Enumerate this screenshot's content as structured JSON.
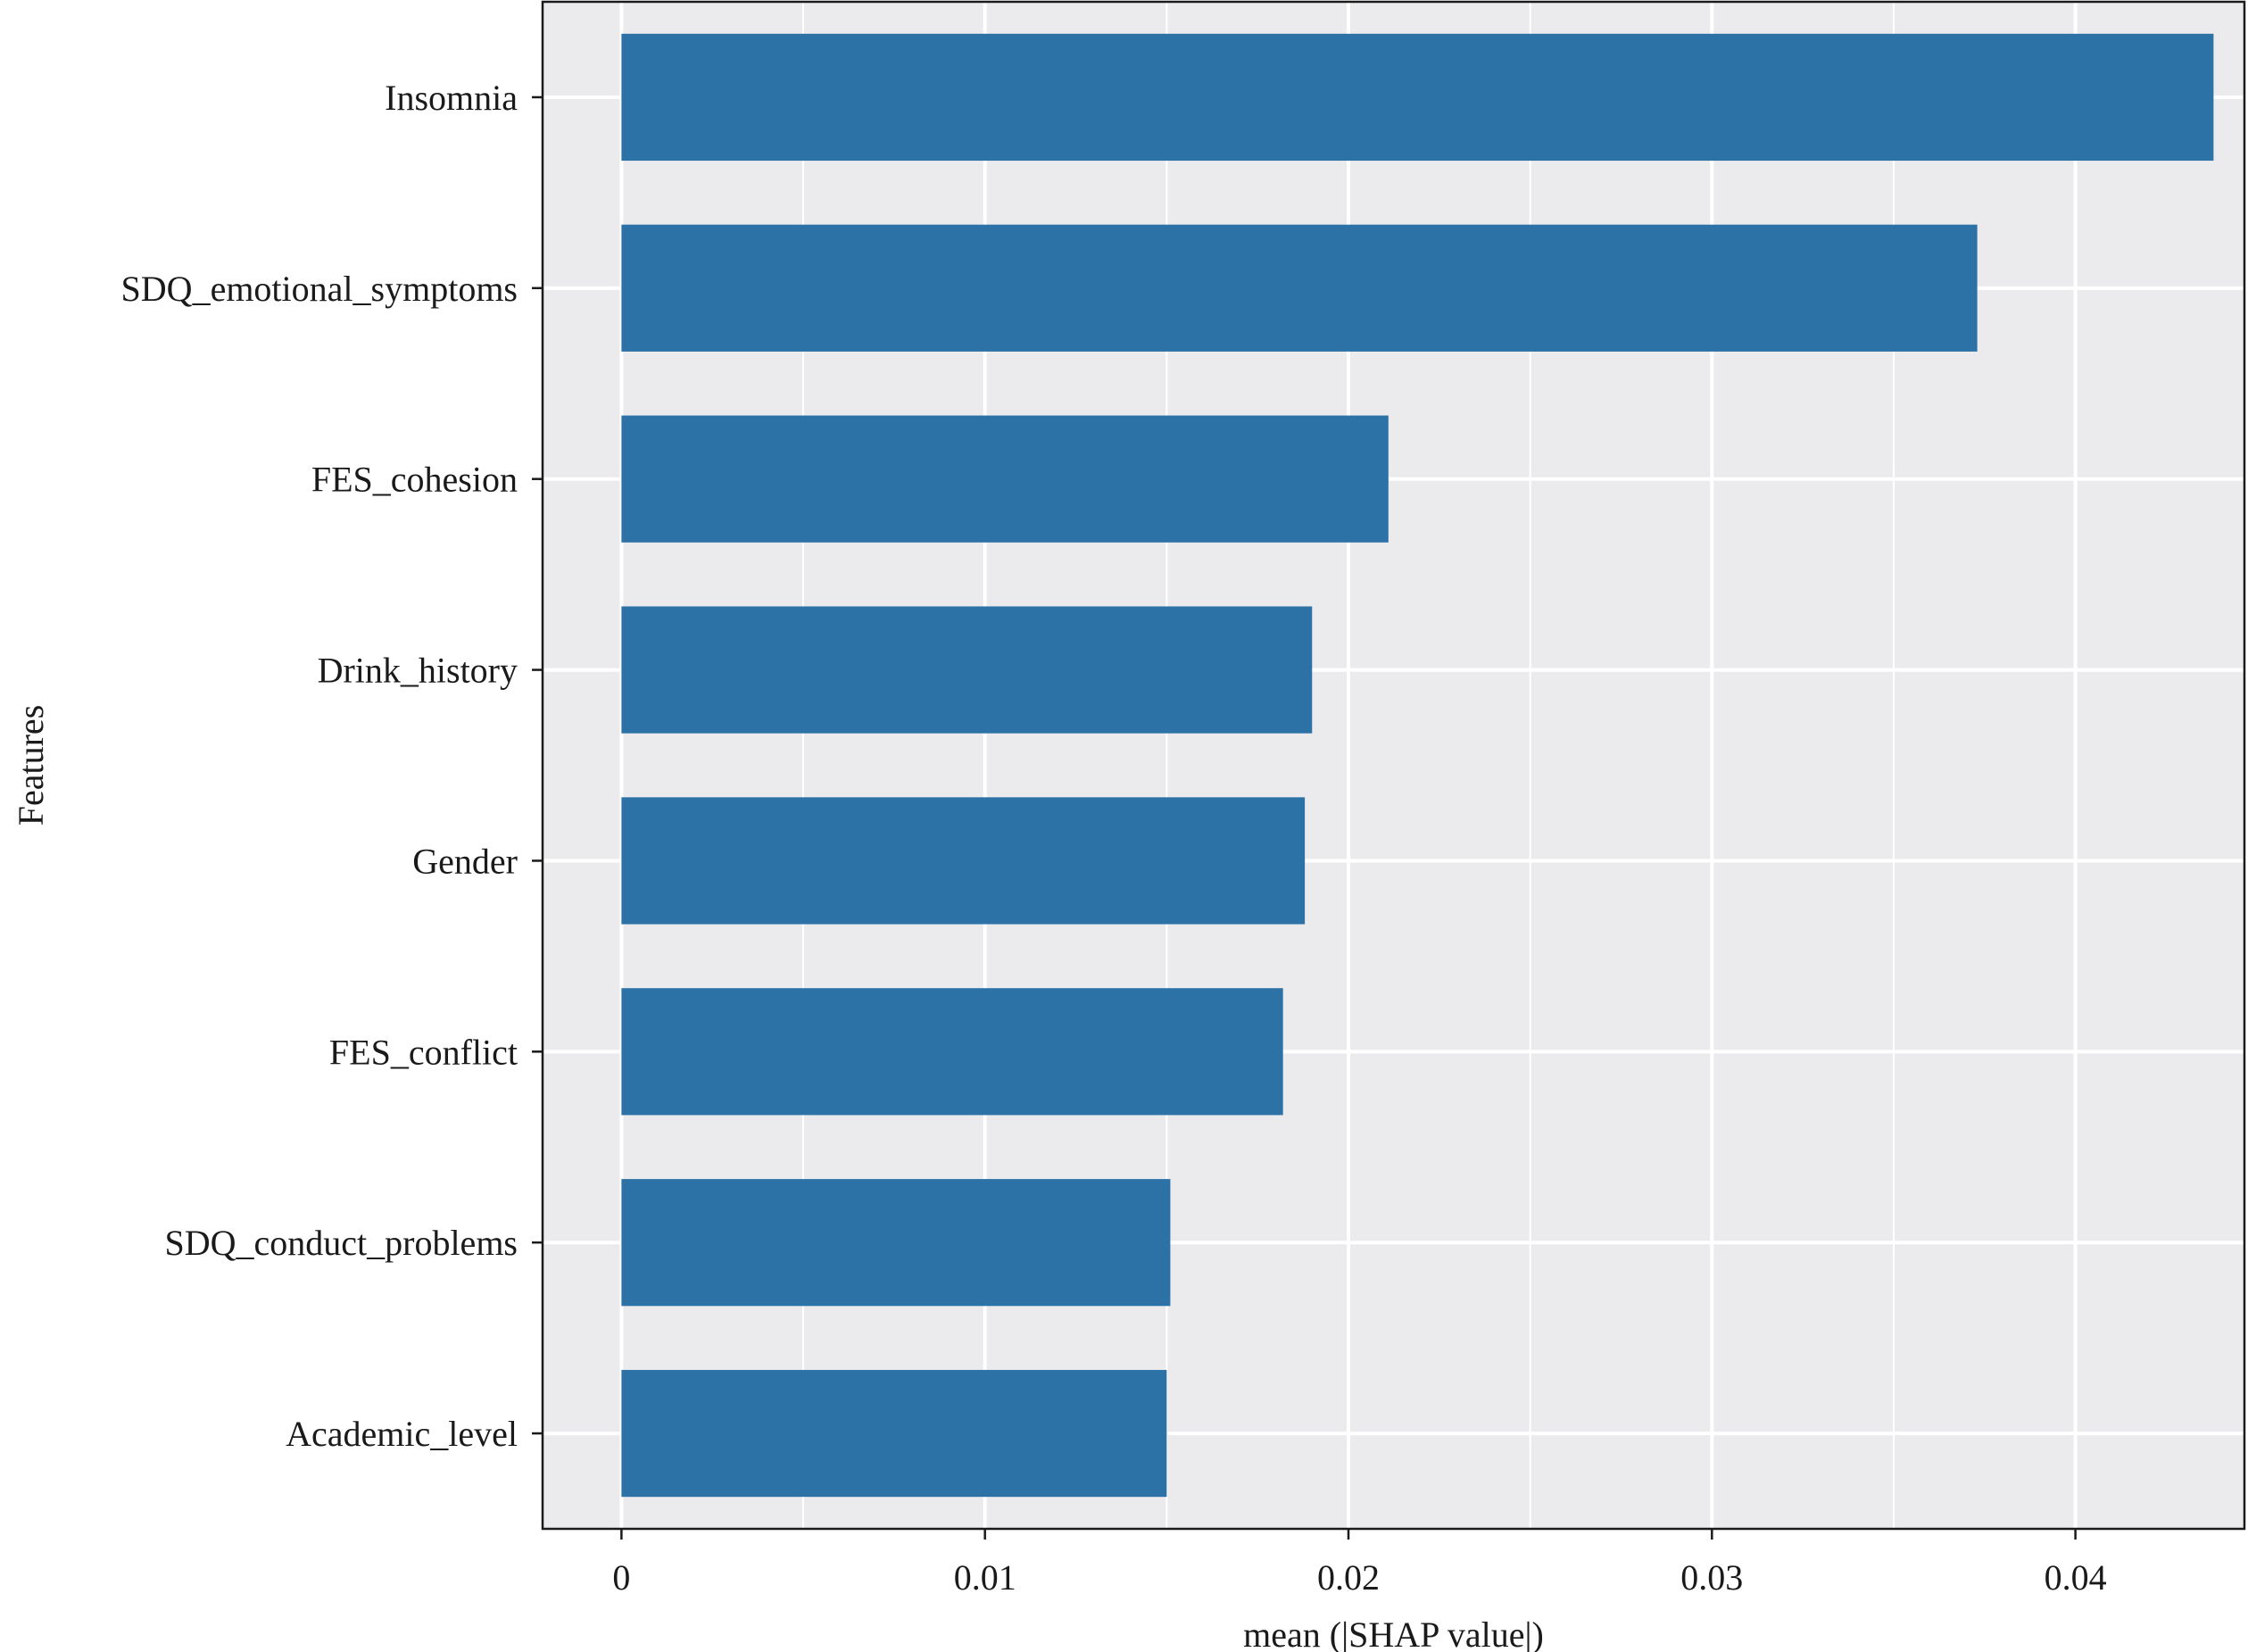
{
  "chart_data": {
    "type": "bar",
    "orientation": "horizontal",
    "title": "",
    "xlabel": "mean (|SHAP value|)",
    "ylabel": "Features",
    "categories": [
      "Insomnia",
      "SDQ_emotional_symptoms",
      "FES_cohesion",
      "Drink_history",
      "Gender",
      "FES_conflict",
      "SDQ_conduct_problems",
      "Academic_level"
    ],
    "values": [
      0.0438,
      0.0373,
      0.0211,
      0.019,
      0.0188,
      0.0182,
      0.0151,
      0.015
    ],
    "xlim": [
      -0.00217,
      0.04465
    ],
    "xticks": [
      0,
      0.01,
      0.02,
      0.03,
      0.04
    ],
    "xtick_labels": [
      "0",
      "0.01",
      "0.02",
      "0.03",
      "0.04"
    ],
    "grid": true,
    "legend": "none",
    "colors": {
      "bar": "#2c72a7",
      "panel_background": "#ebebee",
      "grid": "#ffffff",
      "axis": "#1a1a1a"
    }
  }
}
